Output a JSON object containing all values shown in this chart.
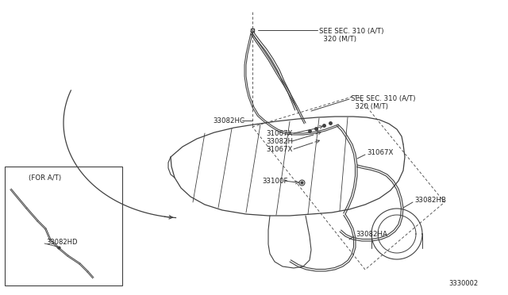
{
  "bg_color": "#ffffff",
  "line_color": "#404040",
  "text_color": "#202020",
  "fig_width": 6.4,
  "fig_height": 3.72,
  "dpi": 100,
  "diagram_number": "3330002",
  "labels": {
    "see_sec_1": "SEE SEC. 310 (A/T)\n  320 (M/T)",
    "see_sec_2": "SEE SEC. 310 (A/T)\n  320 (M/T)",
    "part_33082HC": "33082HC",
    "part_31067X_1": "31067X",
    "part_33082H": "33082H",
    "part_31067X_2": "31067X",
    "part_31067X_3": "31067X",
    "part_33100F": "33100F",
    "part_33082HB": "33082HB",
    "part_33082HA": "33082HA",
    "inset_title": "(FOR A/T)",
    "part_33082HD": "33082HD"
  }
}
